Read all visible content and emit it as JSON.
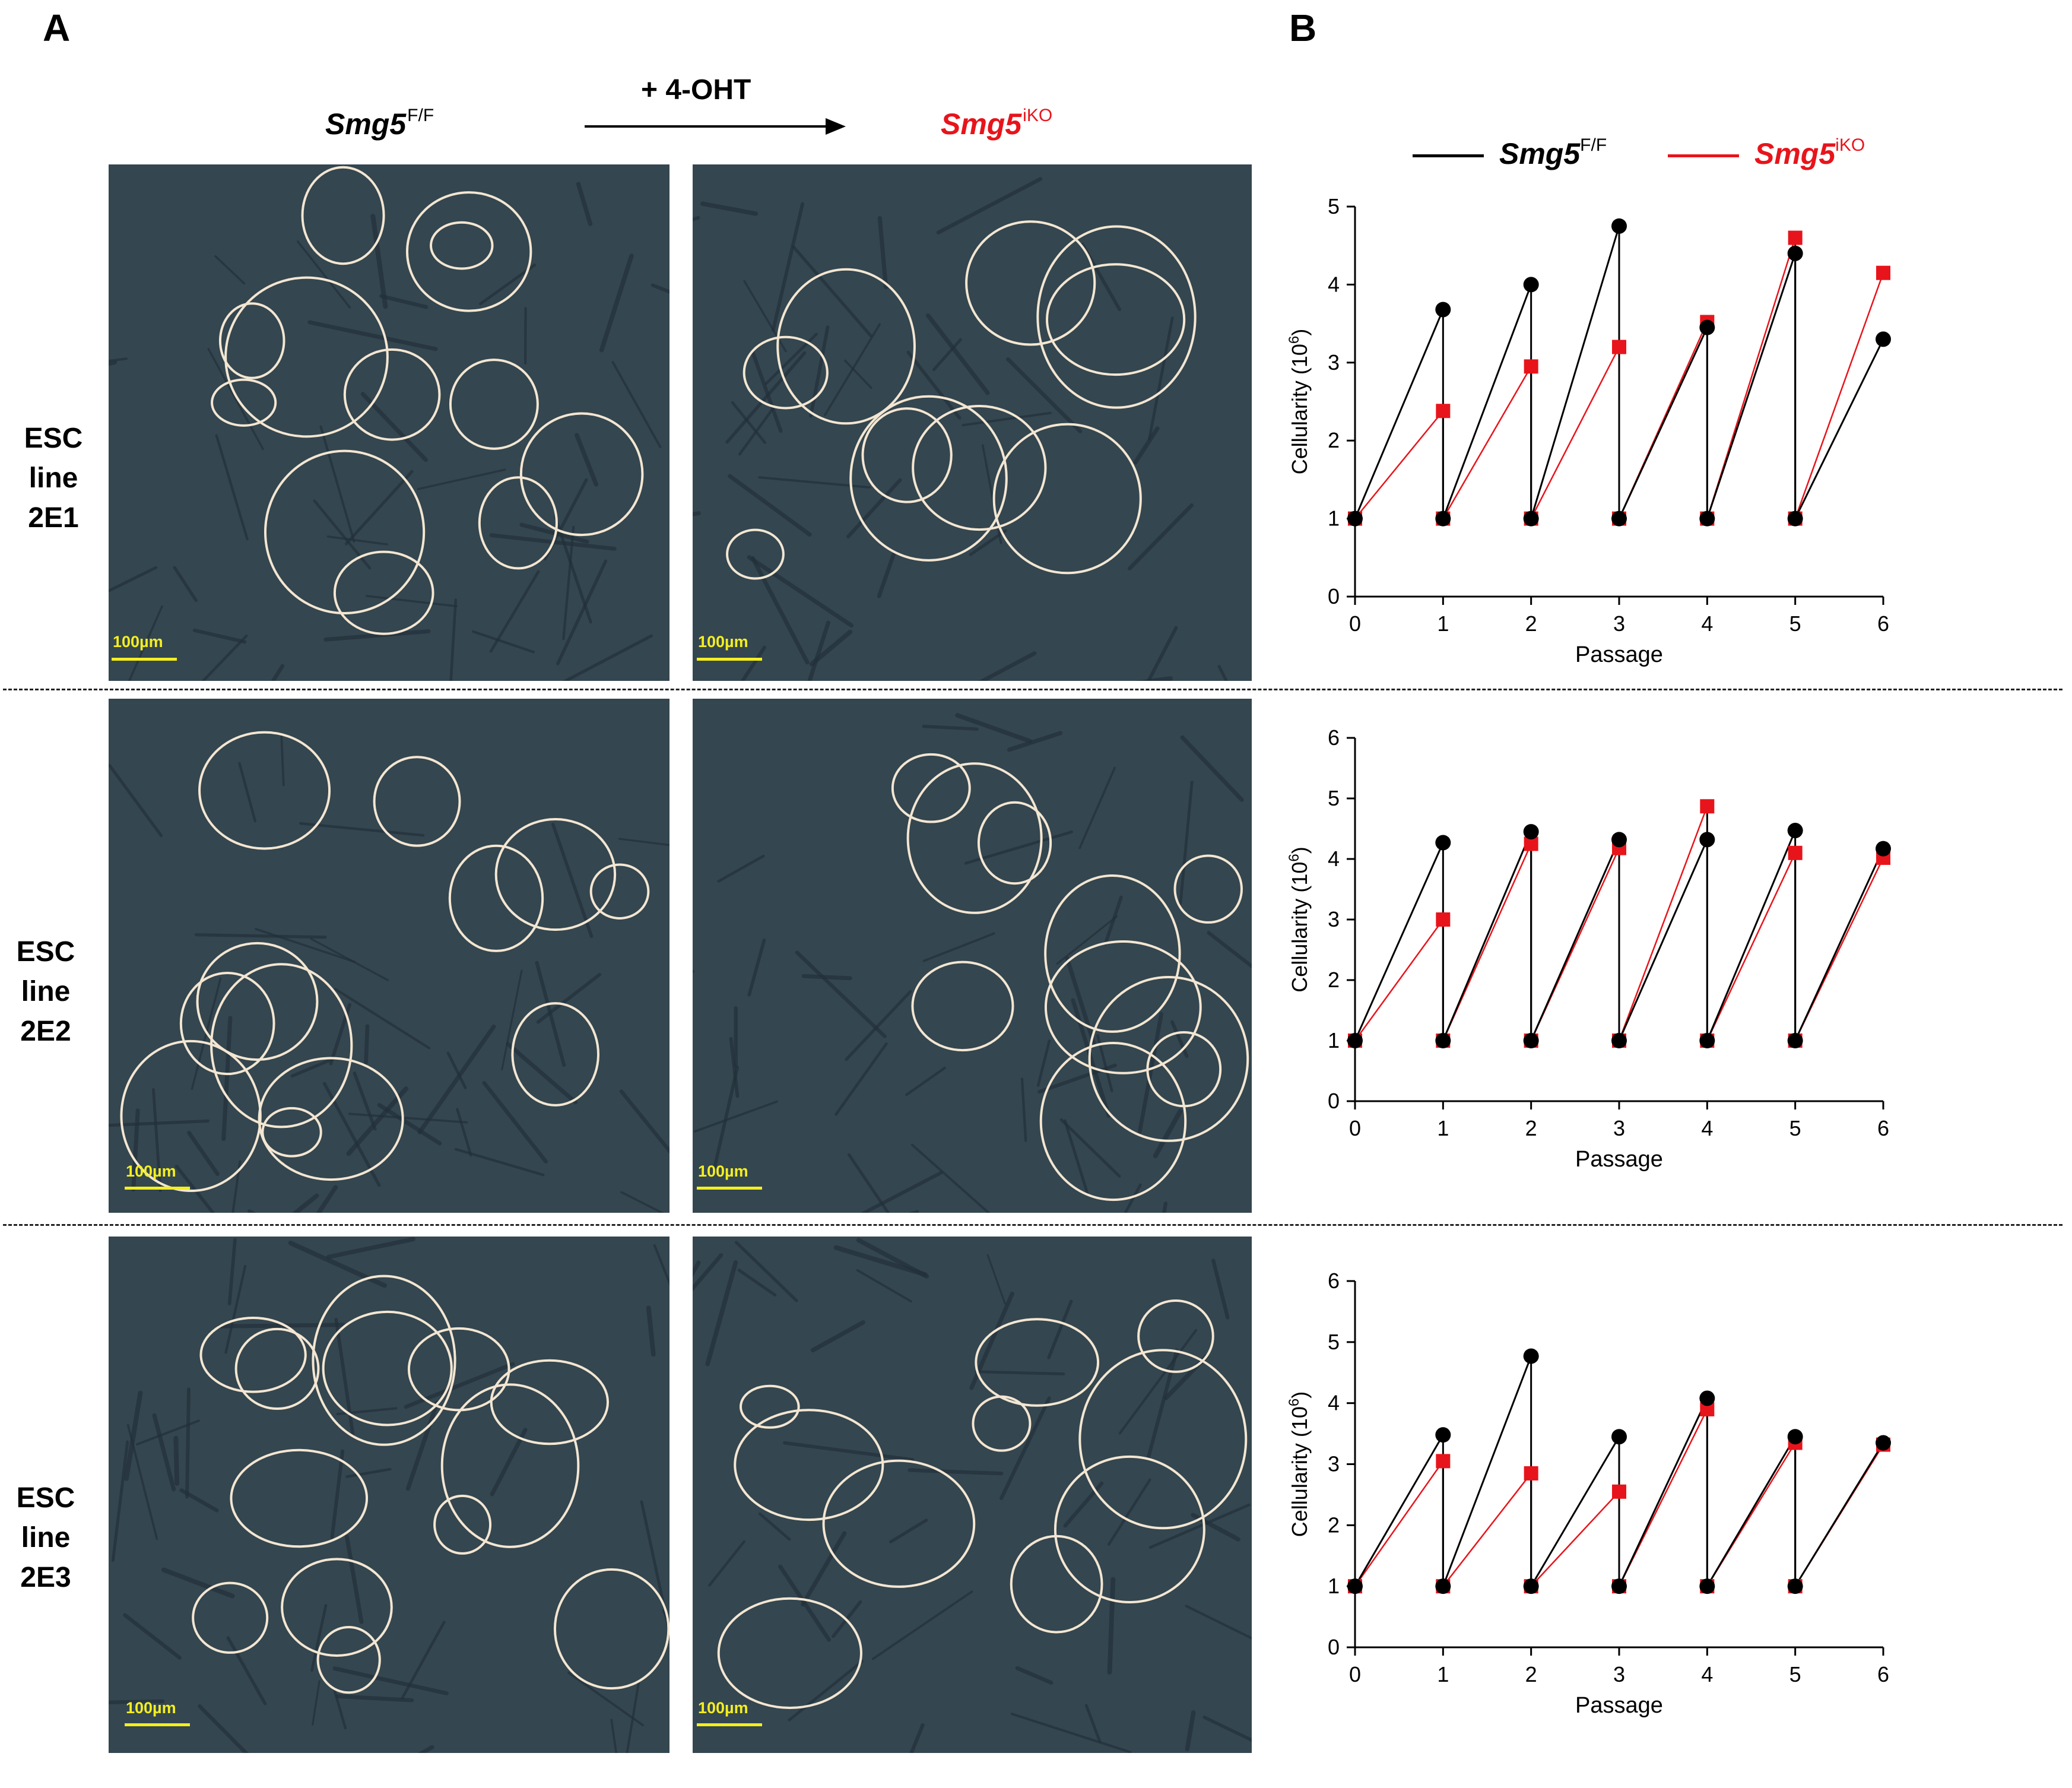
{
  "panel_labels": {
    "a": "A",
    "b": "B"
  },
  "header": {
    "left_gene": "Smg5",
    "left_sup": "F/F",
    "treatment": "+ 4-OHT",
    "right_gene": "Smg5",
    "right_sup": "iKO"
  },
  "rows": [
    {
      "l1": "ESC",
      "l2": "line",
      "l3": "2E1"
    },
    {
      "l1": "ESC",
      "l2": "line",
      "l3": "2E2"
    },
    {
      "l1": "ESC",
      "l2": "line",
      "l3": "2E3"
    }
  ],
  "scale_label": "100µm",
  "legend": {
    "ff": {
      "gene": "Smg5",
      "sup": "F/F"
    },
    "iko": {
      "gene": "Smg5",
      "sup": "iKO"
    }
  },
  "colors": {
    "ff": "#000000",
    "iko": "#e8141b"
  },
  "chart_data": [
    {
      "type": "line",
      "title": "ESC line 2E1",
      "xlabel": "Passage",
      "ylabel": "Cellularity (10",
      "ylabel_sup": "6",
      "ylabel_end": ")",
      "xlim": [
        0,
        6
      ],
      "ylim": [
        0,
        5
      ],
      "xticks": [
        0,
        1,
        2,
        3,
        4,
        5,
        6
      ],
      "yticks": [
        0,
        1,
        2,
        3,
        4,
        5
      ],
      "series": [
        {
          "name": "Smg5 F/F",
          "color": "#000000",
          "marker": "circle",
          "peaks": [
            3.68,
            4.0,
            4.75,
            3.45,
            4.4,
            3.3
          ]
        },
        {
          "name": "Smg5 iKO",
          "color": "#e8141b",
          "marker": "square",
          "peaks": [
            2.38,
            2.95,
            3.2,
            3.52,
            4.6,
            4.15
          ]
        }
      ],
      "reset_value": 1
    },
    {
      "type": "line",
      "title": "ESC line 2E2",
      "xlabel": "Passage",
      "ylabel": "Cellularity (10",
      "ylabel_sup": "6",
      "ylabel_end": ")",
      "xlim": [
        0,
        6
      ],
      "ylim": [
        0,
        6
      ],
      "xticks": [
        0,
        1,
        2,
        3,
        4,
        5,
        6
      ],
      "yticks": [
        0,
        1,
        2,
        3,
        4,
        5,
        6
      ],
      "series": [
        {
          "name": "Smg5 F/F",
          "color": "#000000",
          "marker": "circle",
          "peaks": [
            4.27,
            4.45,
            4.32,
            4.32,
            4.47,
            4.17
          ]
        },
        {
          "name": "Smg5 iKO",
          "color": "#e8141b",
          "marker": "square",
          "peaks": [
            3.0,
            4.25,
            4.18,
            4.87,
            4.1,
            4.02
          ]
        }
      ],
      "reset_value": 1
    },
    {
      "type": "line",
      "title": "ESC line 2E3",
      "xlabel": "Passage",
      "ylabel": "Cellularity (10",
      "ylabel_sup": "6",
      "ylabel_end": ")",
      "xlim": [
        0,
        6
      ],
      "ylim": [
        0,
        6
      ],
      "xticks": [
        0,
        1,
        2,
        3,
        4,
        5,
        6
      ],
      "yticks": [
        0,
        1,
        2,
        3,
        4,
        5,
        6
      ],
      "series": [
        {
          "name": "Smg5 F/F",
          "color": "#000000",
          "marker": "circle",
          "peaks": [
            3.48,
            4.77,
            3.45,
            4.08,
            3.45,
            3.35
          ]
        },
        {
          "name": "Smg5 iKO",
          "color": "#e8141b",
          "marker": "square",
          "peaks": [
            3.05,
            2.85,
            2.55,
            3.9,
            3.35,
            3.32
          ]
        }
      ],
      "reset_value": 1
    }
  ]
}
